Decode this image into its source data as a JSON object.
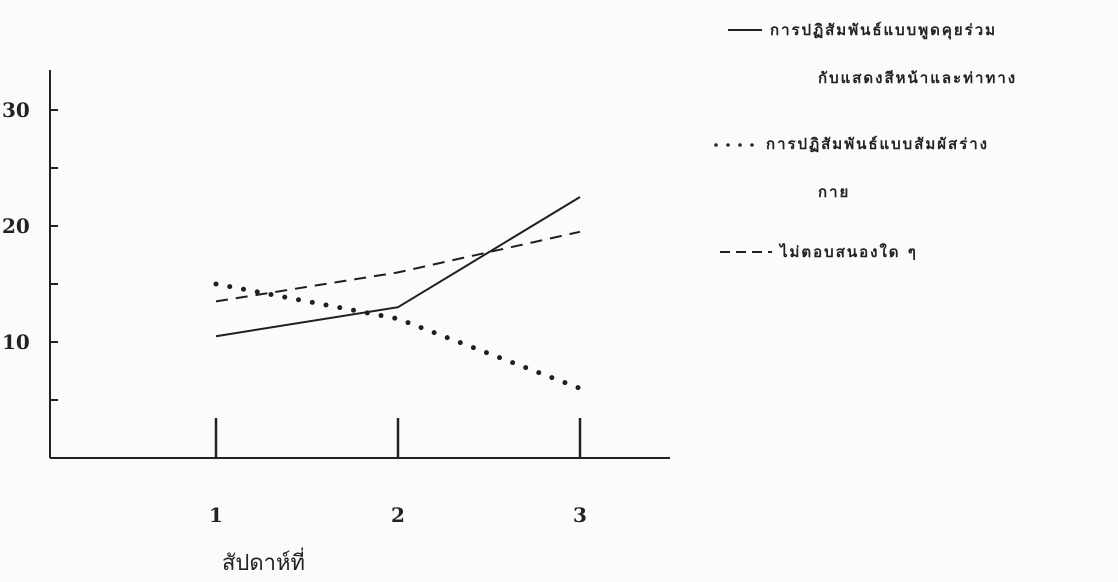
{
  "chart_data": {
    "type": "line",
    "xlabel": "สัปดาห์ที่",
    "ylabel": "",
    "x": [
      1,
      2,
      3
    ],
    "x_ticks": [
      "1",
      "2",
      "3"
    ],
    "y_ticks": [
      "10",
      "20",
      "30"
    ],
    "ylim": [
      0,
      33
    ],
    "grid": false,
    "legend_position": "top-right",
    "series": [
      {
        "name_line1": "การปฏิสัมพันธ์แบบพูดคุยร่วม",
        "name_line2": "กับแสดงสีหน้าและท่าทาง",
        "style": "solid",
        "values": [
          10.5,
          13,
          22.5
        ]
      },
      {
        "name_line1": "การปฏิสัมพันธ์แบบสัมผัสร่าง",
        "name_line2": "กาย",
        "style": "dotted",
        "values": [
          15,
          12,
          6
        ]
      },
      {
        "name_line1": "ไม่ตอบสนองใด ๆ",
        "name_line2": "",
        "style": "dashed",
        "values": [
          13.5,
          16,
          19.5
        ]
      }
    ]
  }
}
